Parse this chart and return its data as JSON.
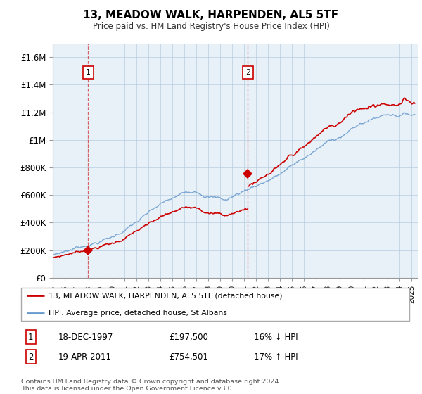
{
  "title": "13, MEADOW WALK, HARPENDEN, AL5 5TF",
  "subtitle": "Price paid vs. HM Land Registry's House Price Index (HPI)",
  "ylabel_ticks": [
    "£0",
    "£200K",
    "£400K",
    "£600K",
    "£800K",
    "£1M",
    "£1.2M",
    "£1.4M",
    "£1.6M"
  ],
  "ylabel_values": [
    0,
    200000,
    400000,
    600000,
    800000,
    1000000,
    1200000,
    1400000,
    1600000
  ],
  "ylim": [
    0,
    1700000
  ],
  "xlim_start": 1995.0,
  "xlim_end": 2025.5,
  "sale1_x": 1997.96,
  "sale1_y": 197500,
  "sale2_x": 2011.3,
  "sale2_y": 754501,
  "legend_line1": "13, MEADOW WALK, HARPENDEN, AL5 5TF (detached house)",
  "legend_line2": "HPI: Average price, detached house, St Albans",
  "sale1_date": "18-DEC-1997",
  "sale1_price": "£197,500",
  "sale1_hpi": "16% ↓ HPI",
  "sale2_date": "19-APR-2011",
  "sale2_price": "£754,501",
  "sale2_hpi": "17% ↑ HPI",
  "footer": "Contains HM Land Registry data © Crown copyright and database right 2024.\nThis data is licensed under the Open Government Licence v3.0.",
  "line_color_red": "#cc0000",
  "line_color_blue": "#6699cc",
  "plot_bg": "#e8f0f8"
}
